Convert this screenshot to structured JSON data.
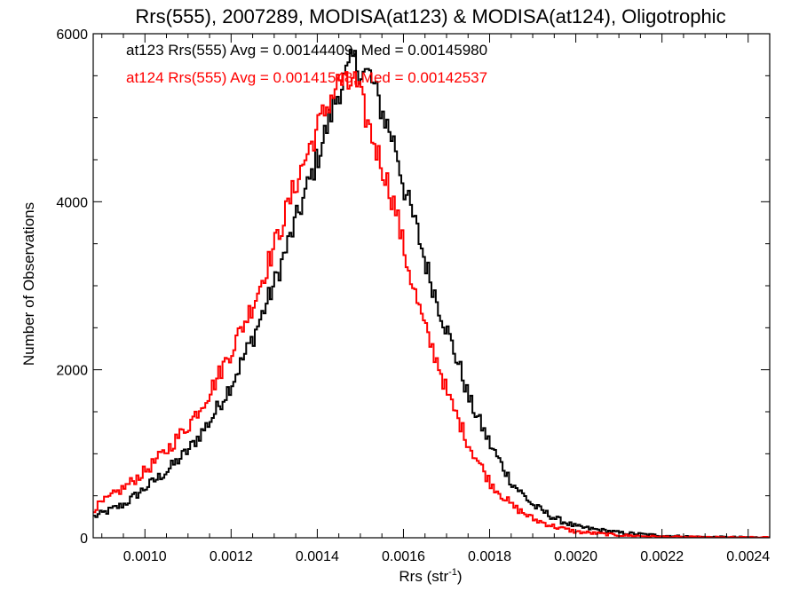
{
  "chart_data": {
    "type": "line",
    "title": "Rrs(555), 2007289, MODISA(at123) & MODISA(at124), Oligotrophic",
    "xlabel": "Rrs (str",
    "xlabel_sup": "-1",
    "xlabel_end": ")",
    "ylabel": "Number of Observations",
    "xlim": [
      0.00088,
      0.00245
    ],
    "ylim": [
      0,
      6000
    ],
    "x_ticks": [
      0.001,
      0.0012,
      0.0014,
      0.0016,
      0.0018,
      0.002,
      0.0022,
      0.0024
    ],
    "x_tick_labels": [
      "0.0010",
      "0.0012",
      "0.0014",
      "0.0016",
      "0.0018",
      "0.0020",
      "0.0022",
      "0.0024"
    ],
    "y_ticks": [
      0,
      2000,
      4000,
      6000
    ],
    "y_tick_labels": [
      "0",
      "2000",
      "4000",
      "6000"
    ],
    "grid": false,
    "legend_position": "top-left",
    "series": [
      {
        "name": "at123",
        "label": "at123 Rrs(555) Avg = 0.00144409, Med = 0.00145980",
        "color": "#000000",
        "x": [
          0.00088,
          0.00095,
          0.001,
          0.00105,
          0.0011,
          0.00115,
          0.0012,
          0.00125,
          0.0013,
          0.00135,
          0.0014,
          0.00143,
          0.00145,
          0.00147,
          0.00148,
          0.0015,
          0.00152,
          0.00155,
          0.00158,
          0.0016,
          0.00163,
          0.00165,
          0.00168,
          0.0017,
          0.00173,
          0.00175,
          0.0018,
          0.00185,
          0.0019,
          0.00195,
          0.002,
          0.0021,
          0.0022,
          0.0023,
          0.00245
        ],
        "values": [
          250,
          400,
          600,
          800,
          1050,
          1400,
          1850,
          2400,
          3050,
          3800,
          4550,
          5050,
          5350,
          5550,
          5700,
          5550,
          5500,
          5050,
          4650,
          4150,
          3650,
          3250,
          2750,
          2450,
          2000,
          1650,
          1100,
          650,
          380,
          230,
          130,
          60,
          25,
          8,
          3
        ]
      },
      {
        "name": "at124",
        "label": "at124 Rrs(555) Avg = 0.00141548, Med = 0.00142537",
        "color": "#ff0000",
        "x": [
          0.00088,
          0.00095,
          0.001,
          0.00105,
          0.0011,
          0.00115,
          0.0012,
          0.00125,
          0.0013,
          0.00135,
          0.0014,
          0.00143,
          0.00145,
          0.00147,
          0.00148,
          0.0015,
          0.00152,
          0.00155,
          0.00158,
          0.0016,
          0.00163,
          0.00165,
          0.00168,
          0.0017,
          0.00173,
          0.00175,
          0.0018,
          0.00185,
          0.0019,
          0.00195,
          0.002,
          0.0021,
          0.0022,
          0.0023,
          0.00245
        ],
        "values": [
          350,
          600,
          800,
          1050,
          1350,
          1750,
          2250,
          2800,
          3500,
          4250,
          4900,
          5250,
          5450,
          5350,
          5500,
          5200,
          4850,
          4400,
          3900,
          3400,
          2800,
          2450,
          2050,
          1700,
          1350,
          1100,
          650,
          380,
          220,
          130,
          70,
          30,
          12,
          4,
          2
        ]
      }
    ]
  }
}
